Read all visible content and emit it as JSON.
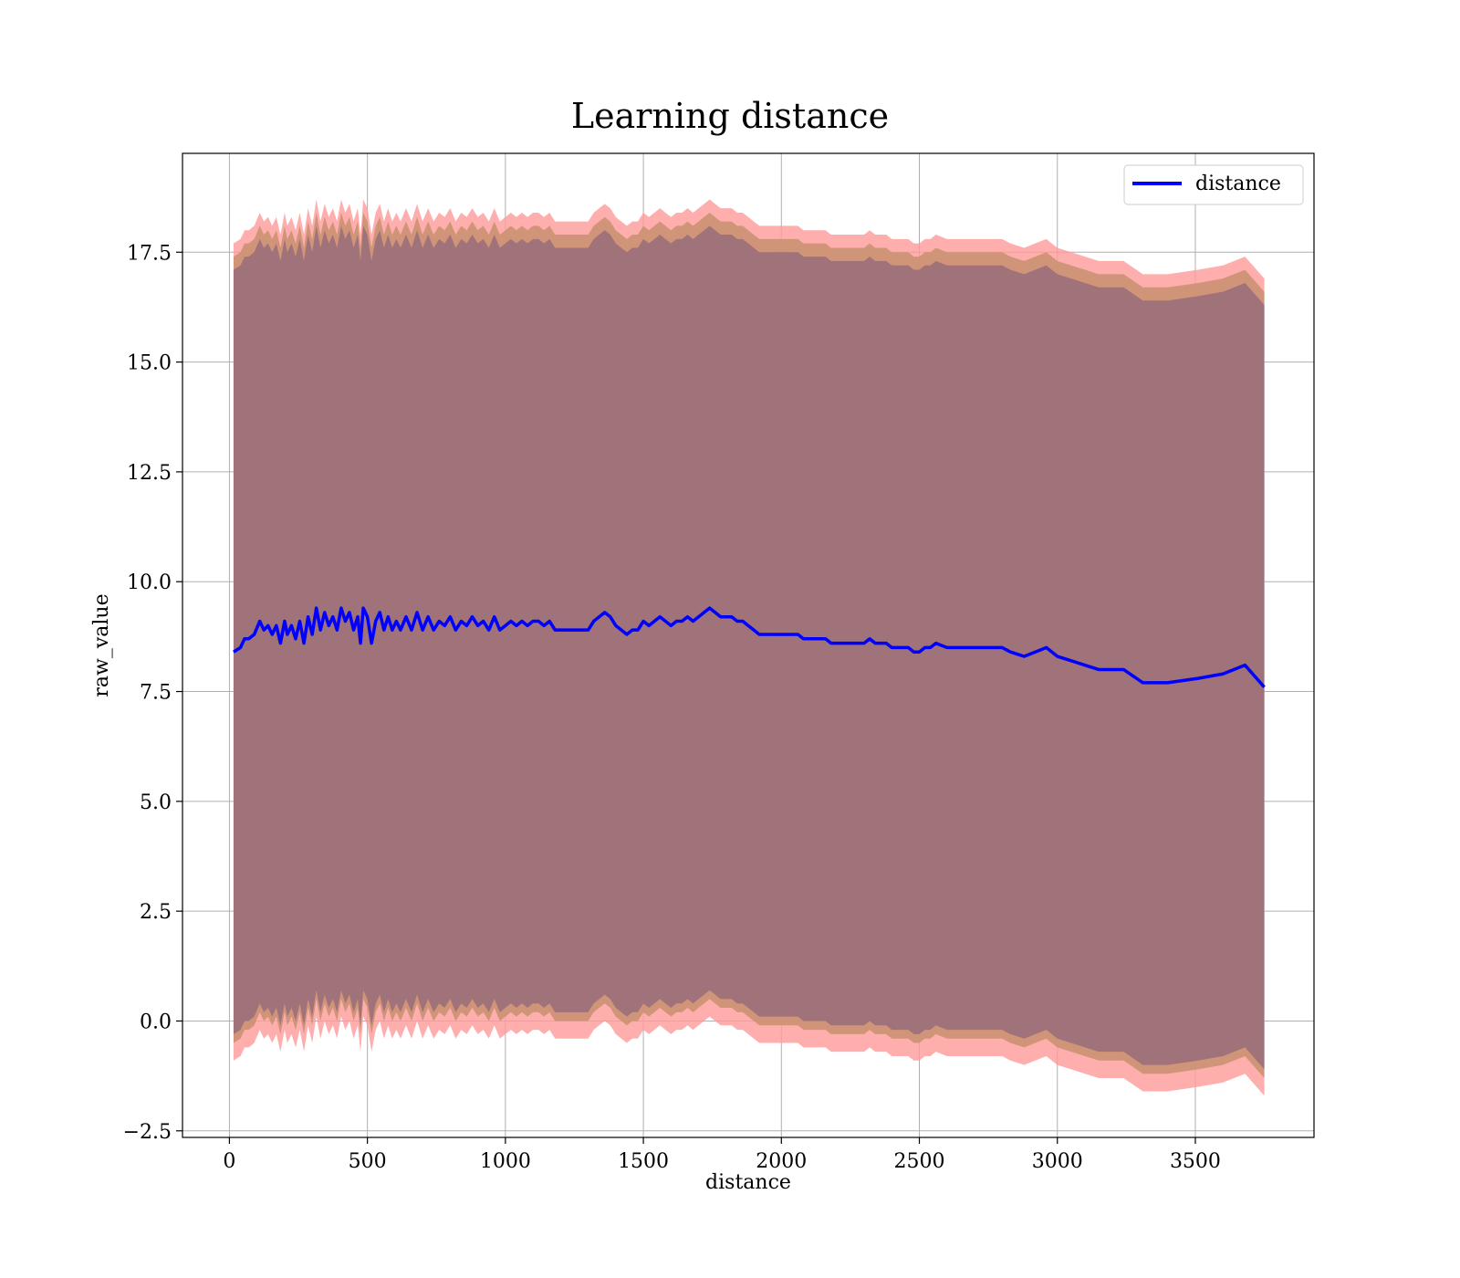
{
  "chart_data": {
    "type": "line",
    "title": "Learning distance",
    "xlabel": "distance",
    "ylabel": "raw_value",
    "xlim": [
      -170,
      3930
    ],
    "ylim": [
      -2.65,
      19.75
    ],
    "xticks": [
      0,
      500,
      1000,
      1500,
      2000,
      2500,
      3000,
      3500
    ],
    "xtick_labels": [
      "0",
      "500",
      "1000",
      "1500",
      "2000",
      "2500",
      "3000",
      "3500"
    ],
    "yticks": [
      -2.5,
      0.0,
      2.5,
      5.0,
      7.5,
      10.0,
      12.5,
      15.0,
      17.5
    ],
    "ytick_labels": [
      "−2.5",
      "0.0",
      "2.5",
      "5.0",
      "7.5",
      "10.0",
      "12.5",
      "15.0",
      "17.5"
    ],
    "grid": true,
    "legend": {
      "position": "top-right",
      "entries": [
        "distance"
      ]
    },
    "colors": {
      "line": "#0000ff",
      "band_outer": "#ff9a9a",
      "band_middle": "#c8906e",
      "band_inner": "#a0727a",
      "grid": "#b0b0b0"
    },
    "series": [
      {
        "name": "distance",
        "x": [
          15,
          40,
          55,
          70,
          90,
          110,
          125,
          140,
          155,
          170,
          185,
          200,
          210,
          225,
          240,
          255,
          270,
          285,
          300,
          315,
          330,
          345,
          360,
          375,
          390,
          405,
          420,
          435,
          450,
          465,
          475,
          485,
          500,
          515,
          530,
          545,
          560,
          575,
          590,
          605,
          620,
          640,
          660,
          680,
          700,
          720,
          740,
          760,
          780,
          800,
          820,
          840,
          860,
          880,
          900,
          920,
          940,
          960,
          980,
          1000,
          1020,
          1040,
          1060,
          1080,
          1100,
          1120,
          1140,
          1160,
          1180,
          1200,
          1220,
          1240,
          1260,
          1280,
          1300,
          1320,
          1340,
          1360,
          1380,
          1400,
          1420,
          1440,
          1460,
          1480,
          1500,
          1520,
          1540,
          1560,
          1580,
          1600,
          1620,
          1640,
          1660,
          1680,
          1700,
          1720,
          1740,
          1760,
          1780,
          1800,
          1820,
          1840,
          1860,
          1880,
          1900,
          1920,
          1940,
          1960,
          1980,
          2000,
          2020,
          2040,
          2060,
          2080,
          2100,
          2120,
          2140,
          2160,
          2180,
          2200,
          2220,
          2240,
          2260,
          2280,
          2300,
          2320,
          2340,
          2360,
          2380,
          2400,
          2420,
          2440,
          2460,
          2480,
          2500,
          2520,
          2540,
          2560,
          2600,
          2650,
          2700,
          2730,
          2760,
          2800,
          2830,
          2880,
          2920,
          2960,
          3000,
          3050,
          3100,
          3150,
          3200,
          3240,
          3310,
          3400,
          3510,
          3600,
          3680,
          3750
        ],
        "y": [
          8.4,
          8.5,
          8.7,
          8.7,
          8.8,
          9.1,
          8.9,
          9.0,
          8.8,
          9.0,
          8.6,
          9.1,
          8.8,
          9.0,
          8.7,
          9.1,
          8.6,
          9.2,
          8.8,
          9.4,
          8.9,
          9.3,
          9.0,
          9.2,
          8.9,
          9.4,
          9.1,
          9.3,
          8.9,
          9.2,
          8.6,
          9.4,
          9.2,
          8.6,
          9.1,
          9.3,
          8.9,
          9.2,
          8.9,
          9.1,
          8.9,
          9.2,
          8.9,
          9.3,
          8.9,
          9.2,
          8.9,
          9.1,
          9.0,
          9.2,
          8.9,
          9.1,
          9.0,
          9.2,
          9.0,
          9.1,
          8.9,
          9.2,
          8.9,
          9.0,
          9.1,
          9.0,
          9.1,
          9.0,
          9.1,
          9.1,
          9.0,
          9.1,
          8.9,
          8.9,
          8.9,
          8.9,
          8.9,
          8.9,
          8.9,
          9.1,
          9.2,
          9.3,
          9.2,
          9.0,
          8.9,
          8.8,
          8.9,
          8.9,
          9.1,
          9.0,
          9.1,
          9.2,
          9.1,
          9.0,
          9.1,
          9.1,
          9.2,
          9.1,
          9.2,
          9.3,
          9.4,
          9.3,
          9.2,
          9.2,
          9.2,
          9.1,
          9.1,
          9.0,
          8.9,
          8.8,
          8.8,
          8.8,
          8.8,
          8.8,
          8.8,
          8.8,
          8.8,
          8.7,
          8.7,
          8.7,
          8.7,
          8.7,
          8.6,
          8.6,
          8.6,
          8.6,
          8.6,
          8.6,
          8.6,
          8.7,
          8.6,
          8.6,
          8.6,
          8.5,
          8.5,
          8.5,
          8.5,
          8.4,
          8.4,
          8.5,
          8.5,
          8.6,
          8.5,
          8.5,
          8.5,
          8.5,
          8.5,
          8.5,
          8.4,
          8.3,
          8.4,
          8.5,
          8.3,
          8.2,
          8.1,
          8.0,
          8.0,
          8.0,
          7.7,
          7.7,
          7.8,
          7.9,
          8.1,
          7.6
        ]
      }
    ],
    "bands": [
      {
        "label": "outer",
        "upper_offset": 9.3,
        "lower_offset": 9.3
      },
      {
        "label": "middle",
        "upper_offset": 9.0,
        "lower_offset": 8.9
      },
      {
        "label": "inner",
        "upper_offset": 8.7,
        "lower_offset": 8.7
      }
    ]
  }
}
